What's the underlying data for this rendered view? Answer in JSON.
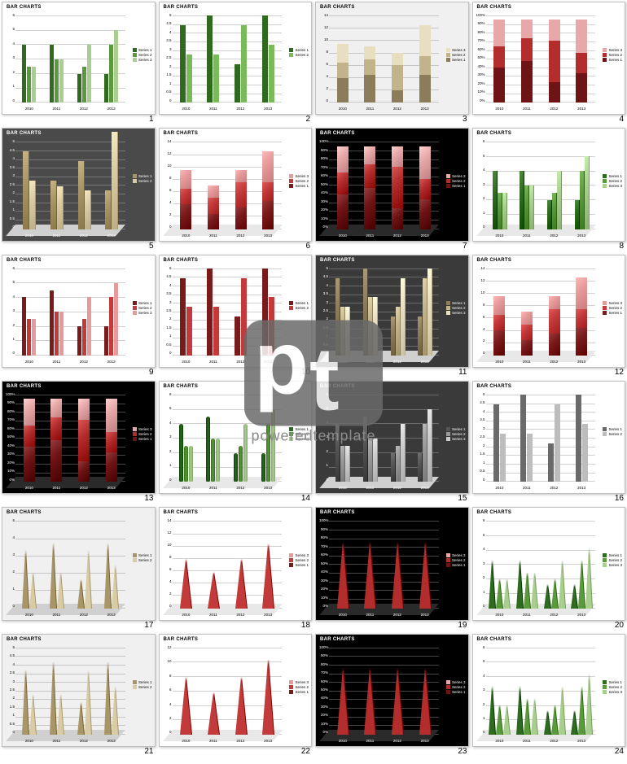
{
  "watermark": {
    "p": "p",
    "t": "t",
    "text": "poweredtemplate"
  },
  "common": {
    "title": "BAR CHARTS",
    "title_fontsize": 6,
    "xcats": [
      "2010",
      "2011",
      "2012",
      "2013"
    ],
    "yticks6": [
      "0",
      "1",
      "2",
      "3",
      "4",
      "5",
      "6"
    ],
    "yticks5_half": [
      "0",
      "0.5",
      "1",
      "1.5",
      "2",
      "2.5",
      "3",
      "3.5",
      "4",
      "4.5"
    ],
    "yticks45": [
      "0",
      "0.5",
      "1",
      "1.5",
      "2",
      "2.5",
      "3",
      "3.5",
      "4",
      "4.5",
      "5"
    ],
    "yticks14": [
      "0",
      "2",
      "4",
      "6",
      "8",
      "10",
      "12",
      "14"
    ],
    "yticks100": [
      "0%",
      "10%",
      "20%",
      "30%",
      "40%",
      "50%",
      "60%",
      "70%",
      "80%",
      "90%",
      "100%"
    ],
    "legend3": [
      "Series 1",
      "Series 2",
      "Series 3"
    ],
    "legend2": [
      "Series 1",
      "Series 2"
    ],
    "legendR": [
      "Series 3",
      "Series 2",
      "Series 1"
    ]
  },
  "palettes": {
    "green3": [
      "#2e6b1f",
      "#5a9a3c",
      "#a8cf8e"
    ],
    "green2": [
      "#2e6b1f",
      "#7aba5a"
    ],
    "tan3": [
      "#8b7d5a",
      "#c2b48a",
      "#e8dec0"
    ],
    "tan2": [
      "#a99668",
      "#d9cba3"
    ],
    "maroon3": [
      "#6f1414",
      "#b32d2d",
      "#e6a8a8"
    ],
    "red3": [
      "#7a1b1b",
      "#c23a3a",
      "#e69a9a"
    ],
    "red2": [
      "#7a1b1b",
      "#c23a3a"
    ],
    "gray2": [
      "#6a6a6a",
      "#bdbdbd"
    ],
    "gray3": [
      "#555",
      "#999",
      "#ccc"
    ]
  },
  "slides": [
    {
      "n": 1,
      "bg": "#ffffff",
      "fg": "#000",
      "kind": "grouped",
      "pal": "green3",
      "legendN": 3,
      "ylim": 6,
      "data": [
        [
          4,
          2.5,
          2.5
        ],
        [
          4,
          3,
          3
        ],
        [
          2,
          2.5,
          4
        ],
        [
          2,
          4,
          5
        ]
      ]
    },
    {
      "n": 2,
      "bg": "#ffffff",
      "fg": "#000",
      "kind": "grouped",
      "pal": "green2",
      "legendN": 2,
      "ylim": 4.5,
      "data": [
        [
          4,
          2.5
        ],
        [
          4.5,
          2.5
        ],
        [
          2,
          4
        ],
        [
          4.5,
          3
        ]
      ]
    },
    {
      "n": 3,
      "bg": "#f0f0f0",
      "fg": "#000",
      "kind": "stacked",
      "pal": "tan3",
      "legendN": 3,
      "legendRev": true,
      "ylim": 14,
      "data": [
        [
          4,
          2.5,
          3
        ],
        [
          4.5,
          2.5,
          2
        ],
        [
          2,
          4,
          2
        ],
        [
          4.5,
          3,
          5
        ]
      ]
    },
    {
      "n": 4,
      "bg": "#ffffff",
      "fg": "#000",
      "kind": "stacked100",
      "pal": "maroon3",
      "legendN": 3,
      "legendRev": true,
      "data": [
        [
          4,
          2.5,
          3
        ],
        [
          4.5,
          2.5,
          2
        ],
        [
          2,
          4,
          2
        ],
        [
          4.5,
          3,
          5
        ]
      ]
    },
    {
      "n": 5,
      "bg": "#4a4a4a",
      "fg": "#fff",
      "kind": "grouped3d",
      "pal": "tan2",
      "legendN": 2,
      "ylim": 4.5,
      "data": [
        [
          4,
          2.5
        ],
        [
          2.5,
          2.2
        ],
        [
          3.5,
          2
        ],
        [
          2,
          5
        ]
      ]
    },
    {
      "n": 6,
      "bg": "#ffffff",
      "fg": "#000",
      "kind": "stacked3d",
      "pal": "red3",
      "legendN": 3,
      "legendRev": true,
      "ylim": 14,
      "data": [
        [
          4,
          2.5,
          3
        ],
        [
          2.5,
          2.5,
          2
        ],
        [
          3.5,
          4,
          2
        ],
        [
          4.5,
          3,
          5
        ]
      ]
    },
    {
      "n": 7,
      "bg": "#000000",
      "fg": "#fff",
      "kind": "stacked100_3d",
      "pal": "maroon3",
      "legendN": 3,
      "legendRev": true,
      "data": [
        [
          4,
          2.5,
          3
        ],
        [
          4.5,
          2.5,
          2
        ],
        [
          2,
          4,
          2
        ],
        [
          4.5,
          3,
          5
        ]
      ]
    },
    {
      "n": 8,
      "bg": "#ffffff",
      "fg": "#000",
      "kind": "grouped3d",
      "pal": "green3",
      "legendN": 3,
      "ylim": 6,
      "data": [
        [
          4,
          2.5,
          2.5
        ],
        [
          4,
          3,
          3
        ],
        [
          2,
          2.5,
          4
        ],
        [
          2,
          4,
          5
        ]
      ]
    },
    {
      "n": 9,
      "bg": "#ffffff",
      "fg": "#000",
      "kind": "grouped",
      "pal": "red3",
      "legendN": 3,
      "ylim": 6,
      "data": [
        [
          4,
          2.5,
          2.5
        ],
        [
          4.5,
          3,
          3
        ],
        [
          2,
          2.5,
          4
        ],
        [
          2,
          4,
          5
        ]
      ]
    },
    {
      "n": 10,
      "bg": "#ffffff",
      "fg": "#000",
      "kind": "grouped",
      "pal": "red2",
      "legendN": 2,
      "ylim": 4.5,
      "data": [
        [
          4,
          2.5
        ],
        [
          4.5,
          2.5
        ],
        [
          2,
          4
        ],
        [
          4.5,
          3
        ]
      ]
    },
    {
      "n": 11,
      "bg": "#3a3a3a",
      "fg": "#fff",
      "kind": "grouped3d",
      "pal": "tan3",
      "legendN": 3,
      "ylim": 4.5,
      "data": [
        [
          4,
          2.5,
          2.5
        ],
        [
          4.5,
          3,
          3
        ],
        [
          2,
          2.5,
          4
        ],
        [
          2,
          4,
          4.5
        ]
      ]
    },
    {
      "n": 12,
      "bg": "#ffffff",
      "fg": "#000",
      "kind": "stacked3d",
      "pal": "red3",
      "legendN": 3,
      "legendRev": true,
      "ylim": 14,
      "data": [
        [
          4,
          2.5,
          3
        ],
        [
          2.5,
          2.5,
          2
        ],
        [
          3.5,
          4,
          2
        ],
        [
          4.5,
          3,
          5
        ]
      ]
    },
    {
      "n": 13,
      "bg": "#000000",
      "fg": "#fff",
      "kind": "stacked100_3d",
      "pal": "maroon3",
      "legendN": 3,
      "legendRev": true,
      "data": [
        [
          4,
          2.5,
          3
        ],
        [
          4.5,
          2.5,
          2
        ],
        [
          2,
          4,
          2
        ],
        [
          4.5,
          3,
          5
        ]
      ]
    },
    {
      "n": 14,
      "bg": "#ffffff",
      "fg": "#000",
      "kind": "cylinder3d",
      "pal": "green3",
      "legendN": 3,
      "ylim": 6,
      "data": [
        [
          4,
          2.5,
          2.5
        ],
        [
          4.5,
          3,
          3
        ],
        [
          2,
          2.5,
          4
        ],
        [
          2,
          4,
          5
        ]
      ]
    },
    {
      "n": 15,
      "bg": "#3a3a3a",
      "fg": "#fff",
      "kind": "grouped3d",
      "pal": "gray3",
      "legendN": 3,
      "ylim": 6,
      "data": [
        [
          4,
          2.5,
          2.5
        ],
        [
          4.5,
          3,
          3
        ],
        [
          2,
          2.5,
          4
        ],
        [
          2,
          4,
          5
        ]
      ]
    },
    {
      "n": 16,
      "bg": "#ffffff",
      "fg": "#000",
      "kind": "grouped",
      "pal": "gray2",
      "legendN": 2,
      "ylim": 4.5,
      "data": [
        [
          4,
          2.5
        ],
        [
          4.5,
          2.5
        ],
        [
          2,
          4
        ],
        [
          4.5,
          3
        ]
      ]
    },
    {
      "n": 17,
      "bg": "#f0f0f0",
      "fg": "#000",
      "kind": "cone",
      "pal": "tan2",
      "legendN": 2,
      "ylim": 5,
      "data": [
        [
          4,
          2.5
        ],
        [
          4.5,
          2.5
        ],
        [
          2,
          4
        ],
        [
          4.5,
          3
        ]
      ]
    },
    {
      "n": 18,
      "bg": "#ffffff",
      "fg": "#000",
      "kind": "cone_stack",
      "pal": "red3",
      "legendN": 3,
      "legendRev": true,
      "ylim": 14,
      "data": [
        [
          4,
          2.5,
          3
        ],
        [
          2.5,
          2.5,
          2
        ],
        [
          3.5,
          4,
          2
        ],
        [
          4.5,
          3,
          5
        ]
      ]
    },
    {
      "n": 19,
      "bg": "#000000",
      "fg": "#fff",
      "kind": "cone100",
      "pal": "maroon3",
      "legendN": 3,
      "legendRev": true,
      "data": [
        [
          4,
          2.5,
          3
        ],
        [
          4.5,
          2.5,
          2
        ],
        [
          2,
          4,
          2
        ],
        [
          4.5,
          3,
          5
        ]
      ]
    },
    {
      "n": 20,
      "bg": "#ffffff",
      "fg": "#000",
      "kind": "cone",
      "pal": "green3",
      "legendN": 3,
      "ylim": 6,
      "data": [
        [
          4,
          2.5,
          2.5
        ],
        [
          4,
          3,
          3
        ],
        [
          2,
          2.5,
          4
        ],
        [
          2,
          4,
          5
        ]
      ]
    },
    {
      "n": 21,
      "bg": "#f0f0f0",
      "fg": "#000",
      "kind": "cone",
      "pal": "tan2",
      "legendN": 2,
      "ylim": 4.5,
      "data": [
        [
          4,
          2.5
        ],
        [
          4.5,
          2.5
        ],
        [
          2,
          4
        ],
        [
          4.5,
          3
        ]
      ]
    },
    {
      "n": 22,
      "bg": "#ffffff",
      "fg": "#000",
      "kind": "cone_stack",
      "pal": "red3",
      "legendN": 3,
      "legendRev": true,
      "ylim": 12,
      "data": [
        [
          4,
          2.5,
          3
        ],
        [
          2.5,
          2.5,
          2
        ],
        [
          3.5,
          4,
          2
        ],
        [
          4.5,
          3,
          5
        ]
      ]
    },
    {
      "n": 23,
      "bg": "#000000",
      "fg": "#fff",
      "kind": "cone100",
      "pal": "maroon3",
      "legendN": 3,
      "legendRev": true,
      "data": [
        [
          4,
          2.5,
          3
        ],
        [
          4.5,
          2.5,
          2
        ],
        [
          2,
          4,
          2
        ],
        [
          4.5,
          3,
          5
        ]
      ]
    },
    {
      "n": 24,
      "bg": "#ffffff",
      "fg": "#000",
      "kind": "cone",
      "pal": "green3",
      "legendN": 3,
      "ylim": 6,
      "data": [
        [
          4,
          2.5,
          2.5
        ],
        [
          4,
          3,
          3
        ],
        [
          2,
          2.5,
          4
        ],
        [
          2,
          4,
          5
        ]
      ]
    }
  ]
}
